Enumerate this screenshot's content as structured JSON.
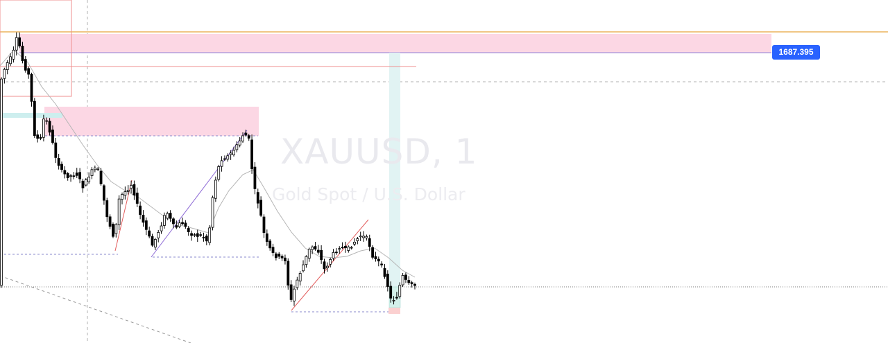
{
  "watermark": {
    "symbol": "XAUUSD, 1",
    "description": "Gold Spot / U.S. Dollar"
  },
  "price_badge": "1687.395",
  "colors": {
    "up_candle": "#ffffff",
    "down_candle": "#000000",
    "wick": "#000000",
    "moving_average": "#b5b5b5",
    "supply_zone": "#fcd7e4",
    "demand_zone": "#cdeeee",
    "level_line": "#e8a33a",
    "badge": "#2962ff"
  },
  "chart_data": {
    "type": "candlestick",
    "symbol": "XAUUSD",
    "interval": "1",
    "highlighted_price": 1687.395,
    "candle_count": 138,
    "moving_average": true,
    "grid": false
  }
}
